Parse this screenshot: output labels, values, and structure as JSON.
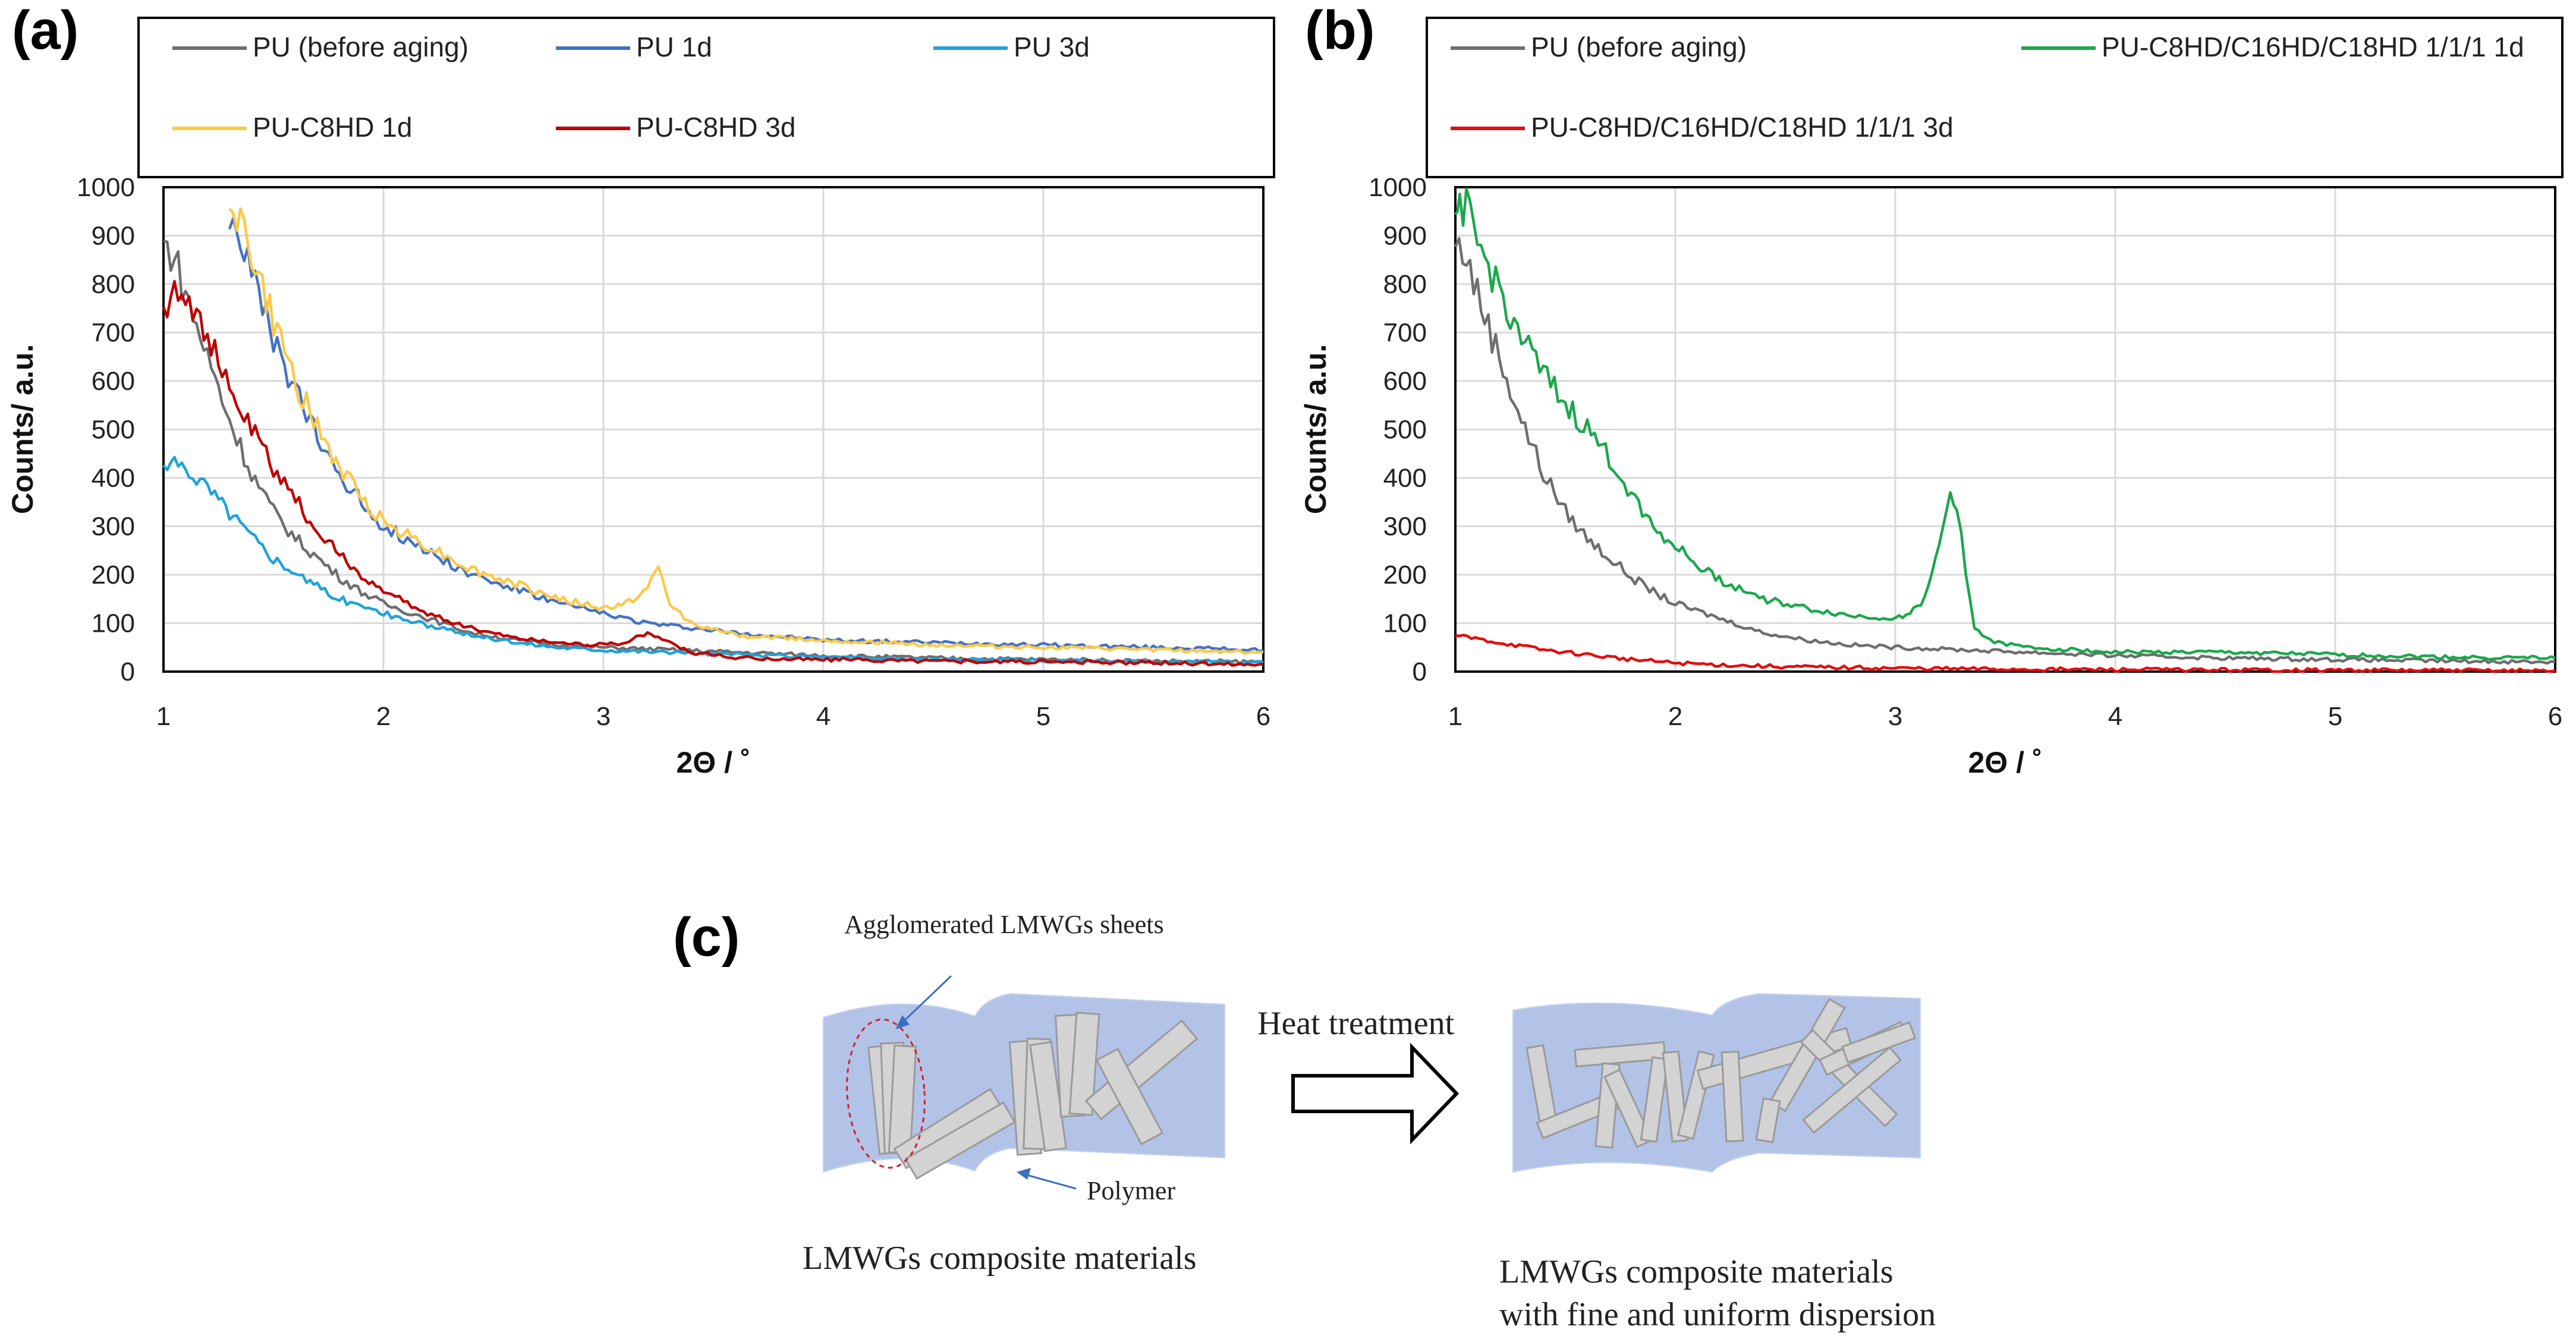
{
  "chart_data": [
    {
      "panel_label": "(a)",
      "type": "line",
      "xlabel": "2Θ / ˚",
      "ylabel": "Counts/ a.u.",
      "xlim": [
        1,
        6
      ],
      "ylim": [
        0,
        1000
      ],
      "xticks": [
        "1",
        "2",
        "3",
        "4",
        "5",
        "6"
      ],
      "yticks": [
        "0",
        "100",
        "200",
        "300",
        "400",
        "500",
        "600",
        "700",
        "800",
        "900",
        "1000"
      ],
      "grid": true,
      "legend_position": "top",
      "series": [
        {
          "name": "PU (before aging)",
          "color": "#6e6e6e",
          "x": [
            1.0,
            1.05,
            1.1,
            1.2,
            1.3,
            1.4,
            1.5,
            1.6,
            1.7,
            1.8,
            1.9,
            2.0,
            2.2,
            2.4,
            2.6,
            2.8,
            3.0,
            3.3,
            3.6,
            4.0,
            4.5,
            5.0,
            5.5,
            6.0
          ],
          "values": [
            880,
            860,
            780,
            650,
            520,
            410,
            330,
            275,
            235,
            195,
            165,
            140,
            110,
            80,
            65,
            55,
            50,
            45,
            40,
            33,
            28,
            25,
            22,
            20
          ]
        },
        {
          "name": "PU 1d",
          "color": "#4472c4",
          "x": [
            1.3,
            1.35,
            1.4,
            1.5,
            1.6,
            1.7,
            1.8,
            1.9,
            2.0,
            2.2,
            2.4,
            2.6,
            2.8,
            3.0,
            3.2,
            3.4,
            3.6,
            4.0,
            4.5,
            5.0,
            5.5,
            6.0
          ],
          "values": [
            950,
            900,
            820,
            680,
            580,
            480,
            410,
            350,
            300,
            250,
            200,
            170,
            140,
            120,
            100,
            90,
            80,
            65,
            60,
            55,
            50,
            45
          ]
        },
        {
          "name": "PU 3d",
          "color": "#1fa2dc",
          "x": [
            1.0,
            1.1,
            1.2,
            1.3,
            1.4,
            1.5,
            1.6,
            1.7,
            1.8,
            1.9,
            2.0,
            2.2,
            2.4,
            2.6,
            2.8,
            3.0,
            3.3,
            3.6,
            4.0,
            4.5,
            5.0,
            5.5,
            6.0
          ],
          "values": [
            420,
            425,
            380,
            330,
            280,
            235,
            205,
            175,
            150,
            135,
            120,
            95,
            75,
            60,
            50,
            45,
            40,
            35,
            30,
            25,
            22,
            20,
            18
          ]
        },
        {
          "name": "PU-C8HD 1d",
          "color": "#ffc845",
          "x": [
            1.3,
            1.35,
            1.4,
            1.5,
            1.6,
            1.7,
            1.8,
            1.9,
            2.0,
            2.2,
            2.4,
            2.6,
            2.8,
            3.0,
            3.1,
            3.2,
            3.25,
            3.3,
            3.4,
            3.6,
            4.0,
            4.5,
            5.0,
            5.5,
            6.0
          ],
          "values": [
            990,
            930,
            860,
            720,
            600,
            500,
            420,
            360,
            310,
            260,
            210,
            180,
            150,
            130,
            140,
            170,
            215,
            140,
            100,
            75,
            65,
            55,
            50,
            45,
            40
          ]
        },
        {
          "name": "PU-C8HD 3d",
          "color": "#c00000",
          "x": [
            1.0,
            1.05,
            1.1,
            1.2,
            1.3,
            1.4,
            1.5,
            1.6,
            1.7,
            1.8,
            1.9,
            2.0,
            2.2,
            2.4,
            2.6,
            2.8,
            3.0,
            3.1,
            3.2,
            3.3,
            3.4,
            3.6,
            4.0,
            4.5,
            5.0,
            5.5,
            6.0
          ],
          "values": [
            740,
            800,
            790,
            690,
            580,
            500,
            420,
            355,
            290,
            240,
            200,
            165,
            120,
            90,
            70,
            60,
            55,
            60,
            80,
            60,
            40,
            28,
            25,
            22,
            20,
            18,
            15
          ]
        }
      ]
    },
    {
      "panel_label": "(b)",
      "type": "line",
      "xlabel": "2Θ / ˚",
      "ylabel": "Counts/ a.u.",
      "xlim": [
        1,
        6
      ],
      "ylim": [
        0,
        1000
      ],
      "xticks": [
        "1",
        "2",
        "3",
        "4",
        "5",
        "6"
      ],
      "yticks": [
        "0",
        "100",
        "200",
        "300",
        "400",
        "500",
        "600",
        "700",
        "800",
        "900",
        "1000"
      ],
      "grid": true,
      "legend_position": "top",
      "series": [
        {
          "name": "PU (before aging)",
          "color": "#6e6e6e",
          "x": [
            1.0,
            1.05,
            1.1,
            1.2,
            1.3,
            1.4,
            1.5,
            1.6,
            1.7,
            1.8,
            1.9,
            2.0,
            2.2,
            2.4,
            2.6,
            2.8,
            3.0,
            3.3,
            3.6,
            4.0,
            4.5,
            5.0,
            5.5,
            6.0
          ],
          "values": [
            880,
            860,
            780,
            650,
            520,
            410,
            330,
            275,
            235,
            195,
            165,
            140,
            110,
            80,
            65,
            55,
            50,
            45,
            40,
            33,
            28,
            25,
            22,
            20
          ]
        },
        {
          "name": "PU-C8HD/C16HD/C18HD 1/1/1 1d",
          "color": "#1ba84b",
          "x": [
            1.0,
            1.02,
            1.05,
            1.1,
            1.2,
            1.3,
            1.4,
            1.5,
            1.6,
            1.7,
            1.8,
            1.9,
            2.0,
            2.1,
            2.2,
            2.4,
            2.6,
            2.8,
            3.0,
            3.1,
            3.15,
            3.2,
            3.25,
            3.28,
            3.32,
            3.36,
            3.45,
            3.6,
            3.8,
            4.0,
            4.5,
            5.0,
            5.5,
            6.0
          ],
          "values": [
            900,
            980,
            950,
            880,
            790,
            690,
            610,
            550,
            500,
            440,
            370,
            300,
            260,
            220,
            190,
            150,
            130,
            115,
            110,
            130,
            170,
            260,
            370,
            350,
            200,
            90,
            60,
            50,
            45,
            40,
            40,
            35,
            30,
            28
          ]
        },
        {
          "name": "PU-C8HD/C16HD/C18HD 1/1/1 3d",
          "color": "#e50c0c",
          "x": [
            1.0,
            1.2,
            1.4,
            1.6,
            1.8,
            2.0,
            2.2,
            2.5,
            3.0,
            3.5,
            4.0,
            5.0,
            6.0
          ],
          "values": [
            75,
            60,
            45,
            35,
            25,
            18,
            14,
            10,
            7,
            5,
            4,
            3,
            2
          ]
        }
      ]
    }
  ],
  "schematic": {
    "panel_label": "(c)",
    "agglomerated_label": "Agglomerated LMWGs sheets",
    "polymer_label": "Polymer",
    "heat_label": "Heat treatment",
    "left_caption": "LMWGs composite materials",
    "right_caption_line1": "LMWGs composite materials",
    "right_caption_line2": "with fine and uniform dispersion"
  }
}
